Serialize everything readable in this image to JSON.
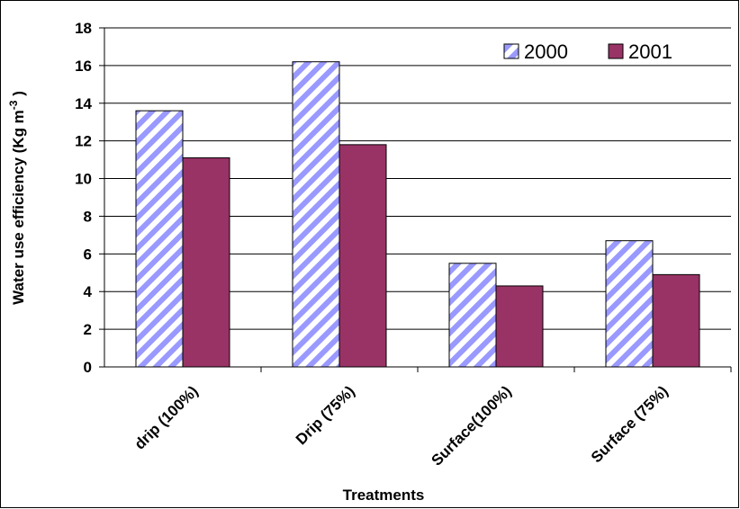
{
  "chart_data": {
    "type": "bar",
    "title": "",
    "xlabel": "Treatments",
    "ylabel": "Water use efficiency (Kg m-3)",
    "ylabel_parts": {
      "before": "Water use efficiency (Kg m",
      "sup": "-3",
      "after": " )"
    },
    "categories": [
      "drip (100%)",
      "Drip (75%)",
      "Surface(100%)",
      "Surface (75%)"
    ],
    "series": [
      {
        "name": "2000",
        "values": [
          13.6,
          16.2,
          5.5,
          6.7
        ],
        "color": "#9999ff",
        "pattern": "diagonal-stripes"
      },
      {
        "name": "2001",
        "values": [
          11.1,
          11.8,
          4.3,
          4.9
        ],
        "color": "#993366",
        "pattern": "solid"
      }
    ],
    "ylim": [
      0,
      18
    ],
    "yticks": [
      0,
      2,
      4,
      6,
      8,
      10,
      12,
      14,
      16,
      18
    ],
    "grid": true,
    "legend_position": "top-right"
  }
}
